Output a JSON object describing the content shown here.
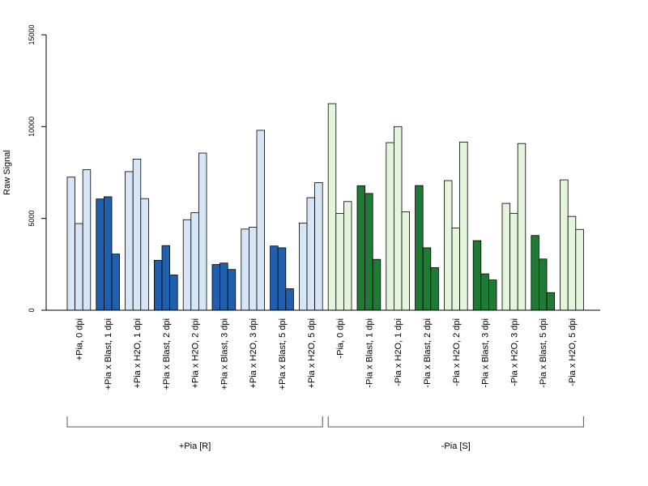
{
  "chart_data": {
    "type": "bar",
    "ylabel": "Raw Signal",
    "xlabel": "",
    "title": "",
    "ylim": [
      0,
      15000
    ],
    "yticks": [
      0,
      5000,
      10000,
      15000
    ],
    "grid": false,
    "categories": [
      "+Pia, 0 dpi",
      "+Pia x Blast, 1 dpi",
      "+Pia x H2O, 1 dpi",
      "+Pia x Blast, 2 dpi",
      "+Pia x H2O, 2 dpi",
      "+Pia x Blast, 3 dpi",
      "+Pia x H2O, 3 dpi",
      "+Pia x Blast, 5 dpi",
      "+Pia x H2O, 5 dpi",
      "-Pia, 0 dpi",
      "-Pia x Blast, 1 dpi",
      "-Pia x H2O, 1 dpi",
      "-Pia x Blast, 2 dpi",
      "-Pia x H2O, 2 dpi",
      "-Pia x Blast, 3 dpi",
      "-Pia x H2O, 3 dpi",
      "-Pia x Blast, 5 dpi",
      "-Pia x H2O, 5 dpi"
    ],
    "replicates": [
      [
        7250,
        4720,
        7650
      ],
      [
        6060,
        6180,
        3060
      ],
      [
        7550,
        8230,
        6080
      ],
      [
        2720,
        3520,
        1920
      ],
      [
        4930,
        5310,
        8560
      ],
      [
        2490,
        2570,
        2220
      ],
      [
        4420,
        4520,
        9800
      ],
      [
        3500,
        3400,
        1170
      ],
      [
        4750,
        6130,
        6950
      ],
      [
        11250,
        5270,
        5920
      ],
      [
        6780,
        6360,
        2770
      ],
      [
        9130,
        10000,
        5360
      ],
      [
        6790,
        3400,
        2320
      ],
      [
        7060,
        4480,
        9160
      ],
      [
        3790,
        1980,
        1650
      ],
      [
        5820,
        5280,
        9080
      ],
      [
        4070,
        2790,
        960
      ],
      [
        7100,
        5110,
        4400
      ]
    ],
    "bar_colors": [
      "#d6e6f7",
      "#1f5fae",
      "#d6e6f7",
      "#1f5fae",
      "#d6e6f7",
      "#1f5fae",
      "#d6e6f7",
      "#1f5fae",
      "#d6e6f7",
      "#e4f5dc",
      "#1f7a35",
      "#e4f5dc",
      "#1f7a35",
      "#e4f5dc",
      "#1f7a35",
      "#e4f5dc",
      "#1f7a35",
      "#e4f5dc"
    ],
    "groups": [
      {
        "label": "+Pia [R]",
        "from": 0,
        "to": 8
      },
      {
        "label": "-Pia [S]",
        "from": 9,
        "to": 17
      }
    ]
  }
}
